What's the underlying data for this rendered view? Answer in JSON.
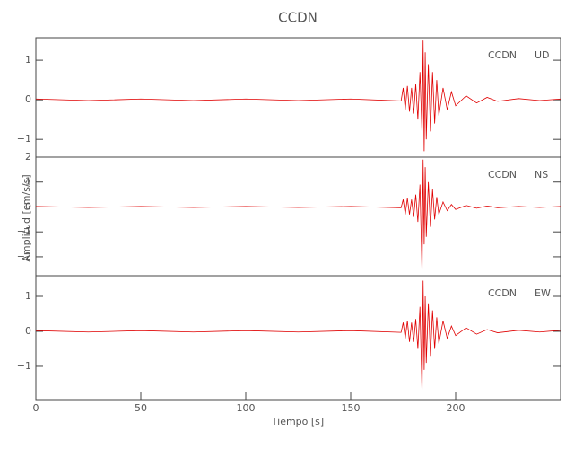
{
  "title": "CCDN",
  "xlabel": "Tiempo [s]",
  "ylabel": "Amplitud [cm/s/s]",
  "chart_data": [
    {
      "type": "line",
      "station": "CCDN",
      "component": "UD",
      "color": "#e00000",
      "xlim": [
        0,
        250
      ],
      "ylim": [
        -1.45,
        1.57
      ],
      "yticks": [
        {
          "value": -1,
          "label": "−1"
        },
        0,
        1
      ],
      "x": [
        0,
        25,
        50,
        75,
        100,
        125,
        150,
        174,
        175,
        176,
        177,
        178,
        179,
        180,
        181,
        182,
        183,
        184,
        184.5,
        185,
        185.5,
        186,
        187,
        188,
        189,
        190,
        191,
        192,
        194,
        196,
        198,
        200,
        205,
        210,
        215,
        220,
        230,
        240,
        250
      ],
      "values": [
        0.02,
        -0.02,
        0.02,
        -0.02,
        0.02,
        -0.02,
        0.02,
        -0.03,
        0.3,
        -0.25,
        0.35,
        -0.3,
        0.3,
        -0.35,
        0.4,
        -0.5,
        0.7,
        -0.9,
        1.5,
        -1.3,
        1.2,
        -1.0,
        0.9,
        -0.8,
        0.7,
        -0.6,
        0.5,
        -0.4,
        0.3,
        -0.25,
        0.2,
        -0.15,
        0.1,
        -0.08,
        0.06,
        -0.04,
        0.03,
        -0.02,
        0.02
      ]
    },
    {
      "type": "line",
      "station": "CCDN",
      "component": "NS",
      "color": "#e00000",
      "xlim": [
        0,
        250
      ],
      "ylim": [
        -2.76,
        2.0
      ],
      "yticks": [
        {
          "value": -2,
          "label": "−2"
        },
        {
          "value": -1,
          "label": "−1"
        },
        0,
        1,
        2
      ],
      "x": [
        0,
        25,
        50,
        75,
        100,
        125,
        150,
        174,
        175,
        176,
        177,
        178,
        179,
        180,
        181,
        182,
        183,
        184,
        184.5,
        185,
        185.5,
        186,
        187,
        188,
        189,
        190,
        191,
        192,
        194,
        196,
        198,
        200,
        205,
        210,
        215,
        220,
        230,
        240,
        250
      ],
      "values": [
        0.02,
        -0.02,
        0.02,
        -0.02,
        0.02,
        -0.02,
        0.02,
        -0.03,
        0.3,
        -0.3,
        0.35,
        -0.3,
        0.3,
        -0.4,
        0.5,
        -0.6,
        0.9,
        -2.7,
        1.9,
        -1.5,
        1.6,
        -1.2,
        1.0,
        -0.8,
        0.7,
        -0.5,
        0.4,
        -0.3,
        0.2,
        -0.15,
        0.1,
        -0.1,
        0.06,
        -0.05,
        0.04,
        -0.03,
        0.02,
        -0.02,
        0.02
      ]
    },
    {
      "type": "line",
      "station": "CCDN",
      "component": "EW",
      "color": "#e00000",
      "xlim": [
        0,
        250
      ],
      "ylim": [
        -1.95,
        1.59
      ],
      "yticks": [
        {
          "value": -1,
          "label": "−1"
        },
        0,
        1
      ],
      "xticks": [
        0,
        50,
        100,
        150,
        200
      ],
      "x": [
        0,
        25,
        50,
        75,
        100,
        125,
        150,
        174,
        175,
        176,
        177,
        178,
        179,
        180,
        181,
        182,
        183,
        184,
        184.5,
        185,
        185.5,
        186,
        187,
        188,
        189,
        190,
        191,
        192,
        194,
        196,
        198,
        200,
        205,
        210,
        215,
        220,
        230,
        240,
        250
      ],
      "values": [
        0.02,
        -0.02,
        0.02,
        -0.02,
        0.02,
        -0.02,
        0.02,
        -0.03,
        0.25,
        -0.2,
        0.3,
        -0.3,
        0.25,
        -0.3,
        0.35,
        -0.5,
        0.7,
        -1.8,
        1.45,
        -1.1,
        1.0,
        -0.9,
        0.8,
        -0.7,
        0.6,
        -0.5,
        0.4,
        -0.35,
        0.3,
        -0.2,
        0.15,
        -0.12,
        0.1,
        -0.08,
        0.05,
        -0.04,
        0.03,
        -0.02,
        0.03
      ]
    }
  ]
}
